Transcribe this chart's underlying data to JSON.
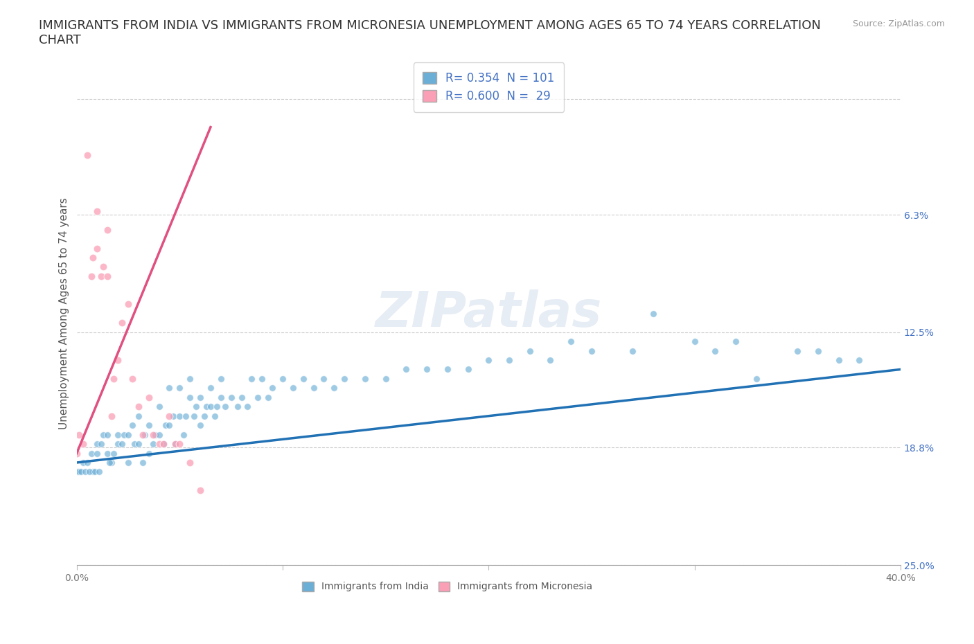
{
  "title": "IMMIGRANTS FROM INDIA VS IMMIGRANTS FROM MICRONESIA UNEMPLOYMENT AMONG AGES 65 TO 74 YEARS CORRELATION\nCHART",
  "source": "Source: ZipAtlas.com",
  "ylabel": "Unemployment Among Ages 65 to 74 years",
  "xlim": [
    0.0,
    0.4
  ],
  "ylim": [
    0.0,
    0.27
  ],
  "yticks": [
    0.0,
    0.063,
    0.125,
    0.188,
    0.25
  ],
  "right_ytick_labels": [
    "25.0%",
    "18.8%",
    "12.5%",
    "6.3%",
    ""
  ],
  "xticks": [
    0.0,
    0.1,
    0.2,
    0.3,
    0.4
  ],
  "xtick_labels": [
    "0.0%",
    "",
    "",
    "",
    "40.0%"
  ],
  "watermark": "ZIPatlas",
  "india_color": "#6baed6",
  "micronesia_color": "#fa9fb5",
  "india_line_color": "#2171b5",
  "micronesia_line_color": "#e05080",
  "india_R": 0.354,
  "india_N": 101,
  "micronesia_R": 0.6,
  "micronesia_N": 29,
  "legend_india_label": "Immigrants from India",
  "legend_micronesia_label": "Immigrants from Micronesia",
  "india_scatter_x": [
    0.0,
    0.003,
    0.005,
    0.007,
    0.008,
    0.01,
    0.01,
    0.012,
    0.013,
    0.015,
    0.015,
    0.017,
    0.018,
    0.02,
    0.02,
    0.022,
    0.023,
    0.025,
    0.025,
    0.027,
    0.028,
    0.03,
    0.03,
    0.032,
    0.033,
    0.035,
    0.035,
    0.037,
    0.038,
    0.04,
    0.04,
    0.042,
    0.043,
    0.045,
    0.045,
    0.047,
    0.048,
    0.05,
    0.05,
    0.052,
    0.053,
    0.055,
    0.055,
    0.057,
    0.058,
    0.06,
    0.06,
    0.062,
    0.063,
    0.065,
    0.065,
    0.067,
    0.068,
    0.07,
    0.07,
    0.072,
    0.075,
    0.078,
    0.08,
    0.083,
    0.085,
    0.088,
    0.09,
    0.093,
    0.095,
    0.1,
    0.105,
    0.11,
    0.115,
    0.12,
    0.125,
    0.13,
    0.14,
    0.15,
    0.16,
    0.17,
    0.18,
    0.19,
    0.2,
    0.21,
    0.22,
    0.23,
    0.24,
    0.25,
    0.27,
    0.28,
    0.3,
    0.31,
    0.32,
    0.33,
    0.35,
    0.36,
    0.37,
    0.38,
    0.001,
    0.002,
    0.004,
    0.006,
    0.009,
    0.011,
    0.016
  ],
  "india_scatter_y": [
    0.05,
    0.055,
    0.055,
    0.06,
    0.05,
    0.06,
    0.065,
    0.065,
    0.07,
    0.06,
    0.07,
    0.055,
    0.06,
    0.065,
    0.07,
    0.065,
    0.07,
    0.07,
    0.055,
    0.075,
    0.065,
    0.065,
    0.08,
    0.055,
    0.07,
    0.06,
    0.075,
    0.065,
    0.07,
    0.07,
    0.085,
    0.065,
    0.075,
    0.095,
    0.075,
    0.08,
    0.065,
    0.08,
    0.095,
    0.07,
    0.08,
    0.09,
    0.1,
    0.08,
    0.085,
    0.075,
    0.09,
    0.08,
    0.085,
    0.085,
    0.095,
    0.08,
    0.085,
    0.09,
    0.1,
    0.085,
    0.09,
    0.085,
    0.09,
    0.085,
    0.1,
    0.09,
    0.1,
    0.09,
    0.095,
    0.1,
    0.095,
    0.1,
    0.095,
    0.1,
    0.095,
    0.1,
    0.1,
    0.1,
    0.105,
    0.105,
    0.105,
    0.105,
    0.11,
    0.11,
    0.115,
    0.11,
    0.12,
    0.115,
    0.115,
    0.135,
    0.12,
    0.115,
    0.12,
    0.1,
    0.115,
    0.115,
    0.11,
    0.11,
    0.05,
    0.05,
    0.05,
    0.05,
    0.05,
    0.05,
    0.055
  ],
  "micronesia_scatter_x": [
    0.0,
    0.001,
    0.003,
    0.005,
    0.007,
    0.008,
    0.01,
    0.01,
    0.012,
    0.013,
    0.015,
    0.015,
    0.017,
    0.018,
    0.02,
    0.022,
    0.025,
    0.027,
    0.03,
    0.032,
    0.035,
    0.037,
    0.04,
    0.042,
    0.045,
    0.048,
    0.05,
    0.055,
    0.06
  ],
  "micronesia_scatter_y": [
    0.06,
    0.07,
    0.065,
    0.22,
    0.155,
    0.165,
    0.17,
    0.19,
    0.155,
    0.16,
    0.155,
    0.18,
    0.08,
    0.1,
    0.11,
    0.13,
    0.14,
    0.1,
    0.085,
    0.07,
    0.09,
    0.07,
    0.065,
    0.065,
    0.08,
    0.065,
    0.065,
    0.055,
    0.04
  ],
  "india_trend_x": [
    0.0,
    0.4
  ],
  "india_trend_y": [
    0.055,
    0.105
  ],
  "micronesia_trend_x": [
    0.0,
    0.065
  ],
  "micronesia_trend_y": [
    0.06,
    0.235
  ],
  "background_color": "#ffffff",
  "grid_color": "#cccccc",
  "title_fontsize": 13,
  "axis_label_fontsize": 11,
  "tick_fontsize": 10,
  "legend_fontsize": 12
}
